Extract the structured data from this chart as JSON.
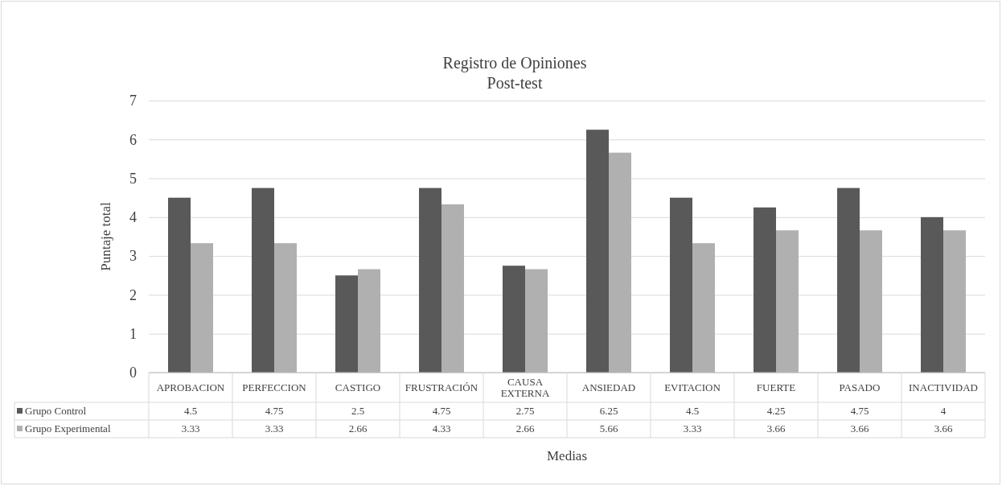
{
  "chart_data": {
    "type": "bar",
    "title": "Registro de Opiniones",
    "subtitle": "Post-test",
    "xlabel": "Medias",
    "ylabel": "Puntaje total",
    "categories": [
      "APROBACION",
      "PERFECCION",
      "CASTIGO",
      "FRUSTRACIÓN",
      "CAUSA EXTERNA",
      "ANSIEDAD",
      "EVITACION",
      "FUERTE",
      "PASADO",
      "INACTIVIDAD"
    ],
    "series": [
      {
        "name": "Grupo Control",
        "color": "#595959",
        "values": [
          4.5,
          4.75,
          2.5,
          4.75,
          2.75,
          6.25,
          4.5,
          4.25,
          4.75,
          4
        ]
      },
      {
        "name": "Grupo Experimental",
        "color": "#b0b0b0",
        "values": [
          3.33,
          3.33,
          2.66,
          4.33,
          2.66,
          5.66,
          3.33,
          3.66,
          3.66,
          3.66
        ]
      }
    ],
    "ylim": [
      0,
      7
    ],
    "yticks": [
      0,
      1,
      2,
      3,
      4,
      5,
      6,
      7
    ],
    "grid": "y",
    "legend": "bottom",
    "data_labels": true
  }
}
